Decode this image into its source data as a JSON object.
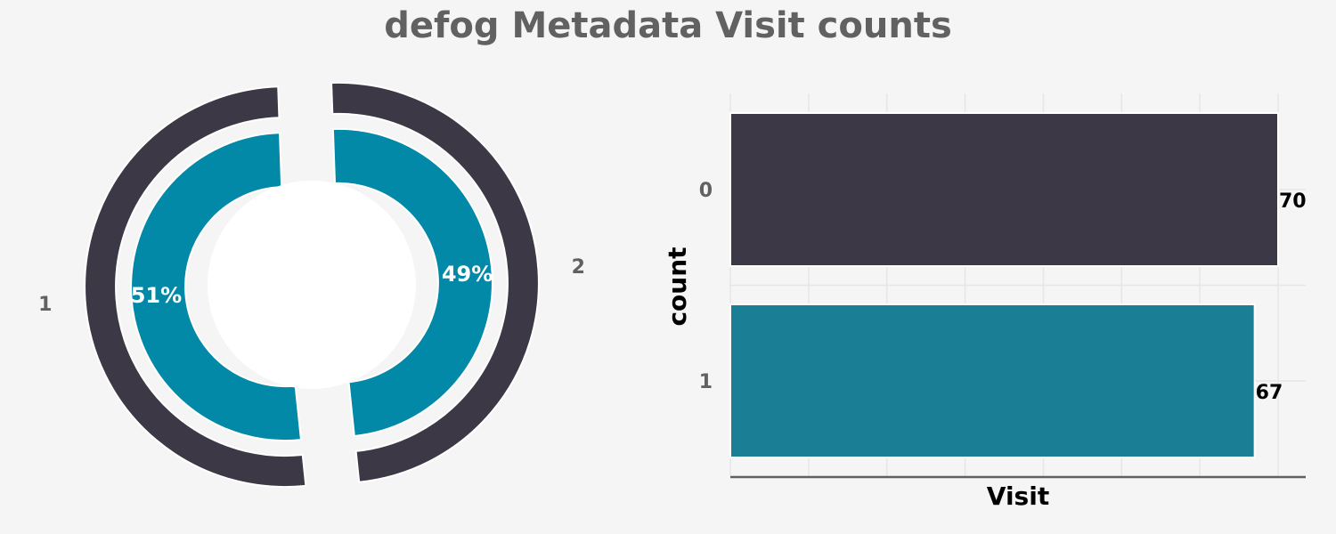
{
  "title": "defog Metadata Visit counts",
  "colors": {
    "dark": "#3c3845",
    "teal": "#0289a7",
    "bar_teal": "#1a7f94",
    "background": "#f5f5f5",
    "muted": "#616161"
  },
  "chart_data": [
    {
      "type": "pie",
      "style": "double-donut-exploded",
      "labels": [
        "1",
        "2"
      ],
      "values": [
        70,
        67
      ],
      "percent_labels": [
        "51%",
        "49%"
      ]
    },
    {
      "type": "bar",
      "orientation": "horizontal",
      "categories": [
        "0",
        "1"
      ],
      "values": [
        70,
        67
      ],
      "data_labels": [
        "70",
        "67"
      ],
      "xlabel": "Visit",
      "ylabel": "count",
      "xlim": [
        0,
        70
      ],
      "grid": true
    }
  ]
}
